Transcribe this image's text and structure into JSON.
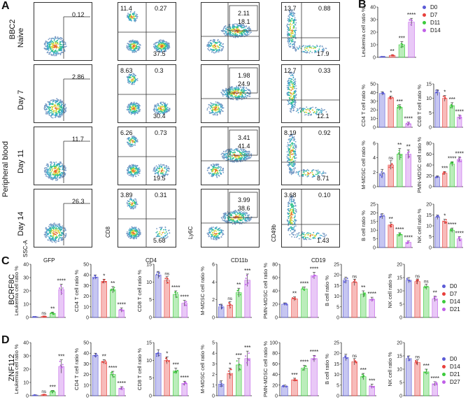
{
  "panels": {
    "A": "A",
    "B": "B",
    "C": "C",
    "D": "D"
  },
  "a_rows": [
    "Naive",
    "Day 7",
    "Day 11",
    "Day 14"
  ],
  "a_group": {
    "bbc2": "BBC2",
    "pb": "Peripheral blood"
  },
  "a_axes": {
    "ssc": "SSC-A",
    "gfp": "GFP",
    "cd8": "CD8",
    "cd4": "CD4",
    "ly6c": "Ly6C",
    "cd11b": "CD11b",
    "cd49b": "CD49b",
    "cd19": "CD19"
  },
  "a_numbers": [
    [
      "0.12",
      "11.4",
      "0.27",
      "37.5",
      "2.11",
      "18.1",
      "13.7",
      "0.88",
      "17.9"
    ],
    [
      "2.86",
      "8.63",
      "0.3",
      "30.4",
      "1.98",
      "24.9",
      "12.7",
      "0.33",
      "12.1"
    ],
    [
      "11.7",
      "6.26",
      "0.73",
      "19.5",
      "3.41",
      "41.4",
      "8.19",
      "0.92",
      "8.71"
    ],
    [
      "26.3",
      "3.89",
      "0.31",
      "5.68",
      "3.99",
      "38.6",
      "3.68",
      "0.10",
      "1.43"
    ]
  ],
  "c_label": "BCRF8C",
  "d_label": "ZNF112",
  "colors": [
    "#5b5bd6",
    "#e8403c",
    "#3ccb3c",
    "#c060e8"
  ],
  "legend_b": [
    "D0",
    "D7",
    "D11",
    "D14"
  ],
  "legend_c": [
    "D0",
    "D7",
    "D14",
    "D21"
  ],
  "legend_d": [
    "D0",
    "D14",
    "D21",
    "D27"
  ],
  "chart_data": [
    {
      "id": "B1",
      "type": "bar",
      "ylabel": "Leukemia cell ratio %",
      "ylim": [
        0,
        40
      ],
      "ticks": [
        0,
        10,
        20,
        30,
        40
      ],
      "values": [
        0.5,
        1.5,
        10,
        28
      ],
      "errors": [
        0.2,
        0.6,
        2.5,
        3
      ],
      "sig": [
        "",
        "**",
        "***",
        "****"
      ]
    },
    {
      "id": "B2",
      "type": "bar",
      "ylabel": "CD4 T cell ratio %",
      "ylim": [
        0,
        50
      ],
      "ticks": [
        0,
        10,
        20,
        30,
        40,
        50
      ],
      "values": [
        39,
        34,
        23,
        4
      ],
      "errors": [
        2,
        2,
        3,
        2
      ],
      "sig": [
        "",
        "*",
        "***",
        "****"
      ]
    },
    {
      "id": "B3",
      "type": "bar",
      "ylabel": "CD8 T cell ratio %",
      "ylim": [
        0,
        15
      ],
      "ticks": [
        0,
        5,
        10,
        15
      ],
      "values": [
        12,
        10,
        7.5,
        3.5
      ],
      "errors": [
        1,
        1,
        1,
        0.7
      ],
      "sig": [
        "",
        "*",
        "***",
        "****"
      ]
    },
    {
      "id": "B4",
      "type": "bar",
      "ylabel": "M-MDSC cell ratio %",
      "ylim": [
        0,
        6
      ],
      "ticks": [
        0,
        2,
        4,
        6
      ],
      "values": [
        1.8,
        3,
        4.5,
        4.5
      ],
      "errors": [
        0.6,
        0.6,
        0.8,
        0.6
      ],
      "sig": [
        "",
        "ns",
        "**",
        "**"
      ]
    },
    {
      "id": "B5",
      "type": "bar",
      "ylabel": "PMN-MDSC cell ratio %",
      "ylim": [
        0,
        80
      ],
      "ticks": [
        0,
        20,
        40,
        60,
        80
      ],
      "values": [
        18,
        25,
        42,
        50
      ],
      "errors": [
        2,
        3,
        4,
        5
      ],
      "sig": [
        "",
        "***",
        "****",
        "****"
      ]
    },
    {
      "id": "B6",
      "type": "bar",
      "ylabel": "B cell ratio %",
      "ylim": [
        0,
        25
      ],
      "ticks": [
        0,
        5,
        10,
        15,
        20,
        25
      ],
      "values": [
        18,
        13,
        7.5,
        3
      ],
      "errors": [
        1.5,
        1.5,
        1,
        0.8
      ],
      "sig": [
        "",
        "**",
        "****",
        "****"
      ]
    },
    {
      "id": "B7",
      "type": "bar",
      "ylabel": "NK cell ratio %",
      "ylim": [
        0,
        20
      ],
      "ticks": [
        0,
        5,
        10,
        15,
        20
      ],
      "values": [
        14,
        12,
        8,
        4
      ],
      "errors": [
        1,
        1,
        1,
        1
      ],
      "sig": [
        "",
        "*",
        "****",
        "****"
      ]
    },
    {
      "id": "C1",
      "type": "bar",
      "ylabel": "Leukemia cell ratio %",
      "ylim": [
        0,
        40
      ],
      "ticks": [
        0,
        10,
        20,
        30,
        40
      ],
      "values": [
        0.5,
        0.8,
        3,
        21
      ],
      "errors": [
        0.2,
        0.3,
        1,
        4
      ],
      "sig": [
        "",
        "ns",
        "**",
        "****"
      ]
    },
    {
      "id": "C2",
      "type": "bar",
      "ylabel": "CD4 T cell ratio %",
      "ylim": [
        0,
        50
      ],
      "ticks": [
        0,
        10,
        20,
        30,
        40,
        50
      ],
      "values": [
        38,
        34,
        26,
        7
      ],
      "errors": [
        2,
        2,
        3,
        2
      ],
      "sig": [
        "",
        "*",
        "**",
        "****"
      ]
    },
    {
      "id": "C3",
      "type": "bar",
      "ylabel": "CD8 T cell ratio %",
      "ylim": [
        0,
        15
      ],
      "ticks": [
        0,
        5,
        10,
        15
      ],
      "values": [
        12,
        10.5,
        6.5,
        4
      ],
      "errors": [
        1,
        1,
        1,
        0.8
      ],
      "sig": [
        "",
        "ns",
        "****",
        "****"
      ]
    },
    {
      "id": "C4",
      "type": "bar",
      "ylabel": "M-MDSC cell ratio %",
      "ylim": [
        0,
        6
      ],
      "ticks": [
        0,
        2,
        4,
        6
      ],
      "values": [
        1.2,
        1.4,
        2.8,
        4.2
      ],
      "errors": [
        0.3,
        0.4,
        0.5,
        0.7
      ],
      "sig": [
        "",
        "ns",
        "**",
        "***"
      ]
    },
    {
      "id": "C5",
      "type": "bar",
      "ylabel": "PMN-MDSC cell ratio %",
      "ylim": [
        0,
        80
      ],
      "ticks": [
        0,
        20,
        40,
        60,
        80
      ],
      "values": [
        20,
        28,
        43,
        63
      ],
      "errors": [
        2,
        3,
        3,
        5
      ],
      "sig": [
        "",
        "**",
        "****",
        "****"
      ]
    },
    {
      "id": "C6",
      "type": "bar",
      "ylabel": "B cell ratio %",
      "ylim": [
        0,
        25
      ],
      "ticks": [
        0,
        5,
        10,
        15,
        20,
        25
      ],
      "values": [
        17.5,
        16.5,
        11,
        8.5
      ],
      "errors": [
        1.5,
        1.5,
        1.5,
        1
      ],
      "sig": [
        "",
        "ns",
        "**",
        "****"
      ]
    },
    {
      "id": "C7",
      "type": "bar",
      "ylabel": "NK cell ratio %",
      "ylim": [
        0,
        20
      ],
      "ticks": [
        0,
        5,
        10,
        15,
        20
      ],
      "values": [
        14,
        13.5,
        11.5,
        7
      ],
      "errors": [
        1,
        1,
        1,
        1
      ],
      "sig": [
        "",
        "ns",
        "ns",
        "**"
      ]
    },
    {
      "id": "D1",
      "type": "bar",
      "ylabel": "Leukemia cell ratio %",
      "ylim": [
        0,
        40
      ],
      "ticks": [
        0,
        10,
        20,
        30,
        40
      ],
      "values": [
        0.5,
        0.8,
        3,
        22
      ],
      "errors": [
        0.2,
        0.3,
        1,
        5
      ],
      "sig": [
        "",
        "ns",
        "***",
        "***"
      ]
    },
    {
      "id": "D2",
      "type": "bar",
      "ylabel": "CD4 T cell ratio %",
      "ylim": [
        0,
        50
      ],
      "ticks": [
        0,
        10,
        20,
        30,
        40,
        50
      ],
      "values": [
        38,
        32,
        20,
        7
      ],
      "errors": [
        2,
        2,
        3,
        1.5
      ],
      "sig": [
        "",
        "**",
        "****",
        "****"
      ]
    },
    {
      "id": "D3",
      "type": "bar",
      "ylabel": "CD8 T cell ratio %",
      "ylim": [
        0,
        15
      ],
      "ticks": [
        0,
        5,
        10,
        15
      ],
      "values": [
        12,
        10,
        7,
        3.5
      ],
      "errors": [
        1,
        1,
        0.8,
        0.6
      ],
      "sig": [
        "",
        "*",
        "***",
        "****"
      ]
    },
    {
      "id": "D4",
      "type": "bar",
      "ylabel": "M-MDSC cell ratio %",
      "ylim": [
        0,
        5
      ],
      "ticks": [
        0,
        1,
        2,
        3,
        4,
        5
      ],
      "values": [
        1.1,
        2.1,
        2.9,
        3.5
      ],
      "errors": [
        0.3,
        0.5,
        0.6,
        0.7
      ],
      "sig": [
        "",
        "*",
        "***",
        "***"
      ]
    },
    {
      "id": "D5",
      "type": "bar",
      "ylabel": "PMN-MDSC cell ratio %",
      "ylim": [
        0,
        100
      ],
      "ticks": [
        0,
        20,
        40,
        60,
        80,
        100
      ],
      "values": [
        18,
        30,
        52,
        70
      ],
      "errors": [
        2,
        3,
        5,
        6
      ],
      "sig": [
        "",
        "***",
        "****",
        "****"
      ]
    },
    {
      "id": "D6",
      "type": "bar",
      "ylabel": "B cell ratio %",
      "ylim": [
        0,
        25
      ],
      "ticks": [
        0,
        5,
        10,
        15,
        20,
        25
      ],
      "values": [
        18,
        16,
        9,
        4.5
      ],
      "errors": [
        1.5,
        1.5,
        1.5,
        1
      ],
      "sig": [
        "",
        "ns",
        "***",
        "***"
      ]
    },
    {
      "id": "D7",
      "type": "bar",
      "ylabel": "NK cell ratio %",
      "ylim": [
        0,
        20
      ],
      "ticks": [
        0,
        5,
        10,
        15,
        20
      ],
      "values": [
        14,
        12.5,
        9,
        4.5
      ],
      "errors": [
        1,
        1,
        1,
        0.8
      ],
      "sig": [
        "",
        "ns",
        "***",
        "****"
      ]
    }
  ]
}
